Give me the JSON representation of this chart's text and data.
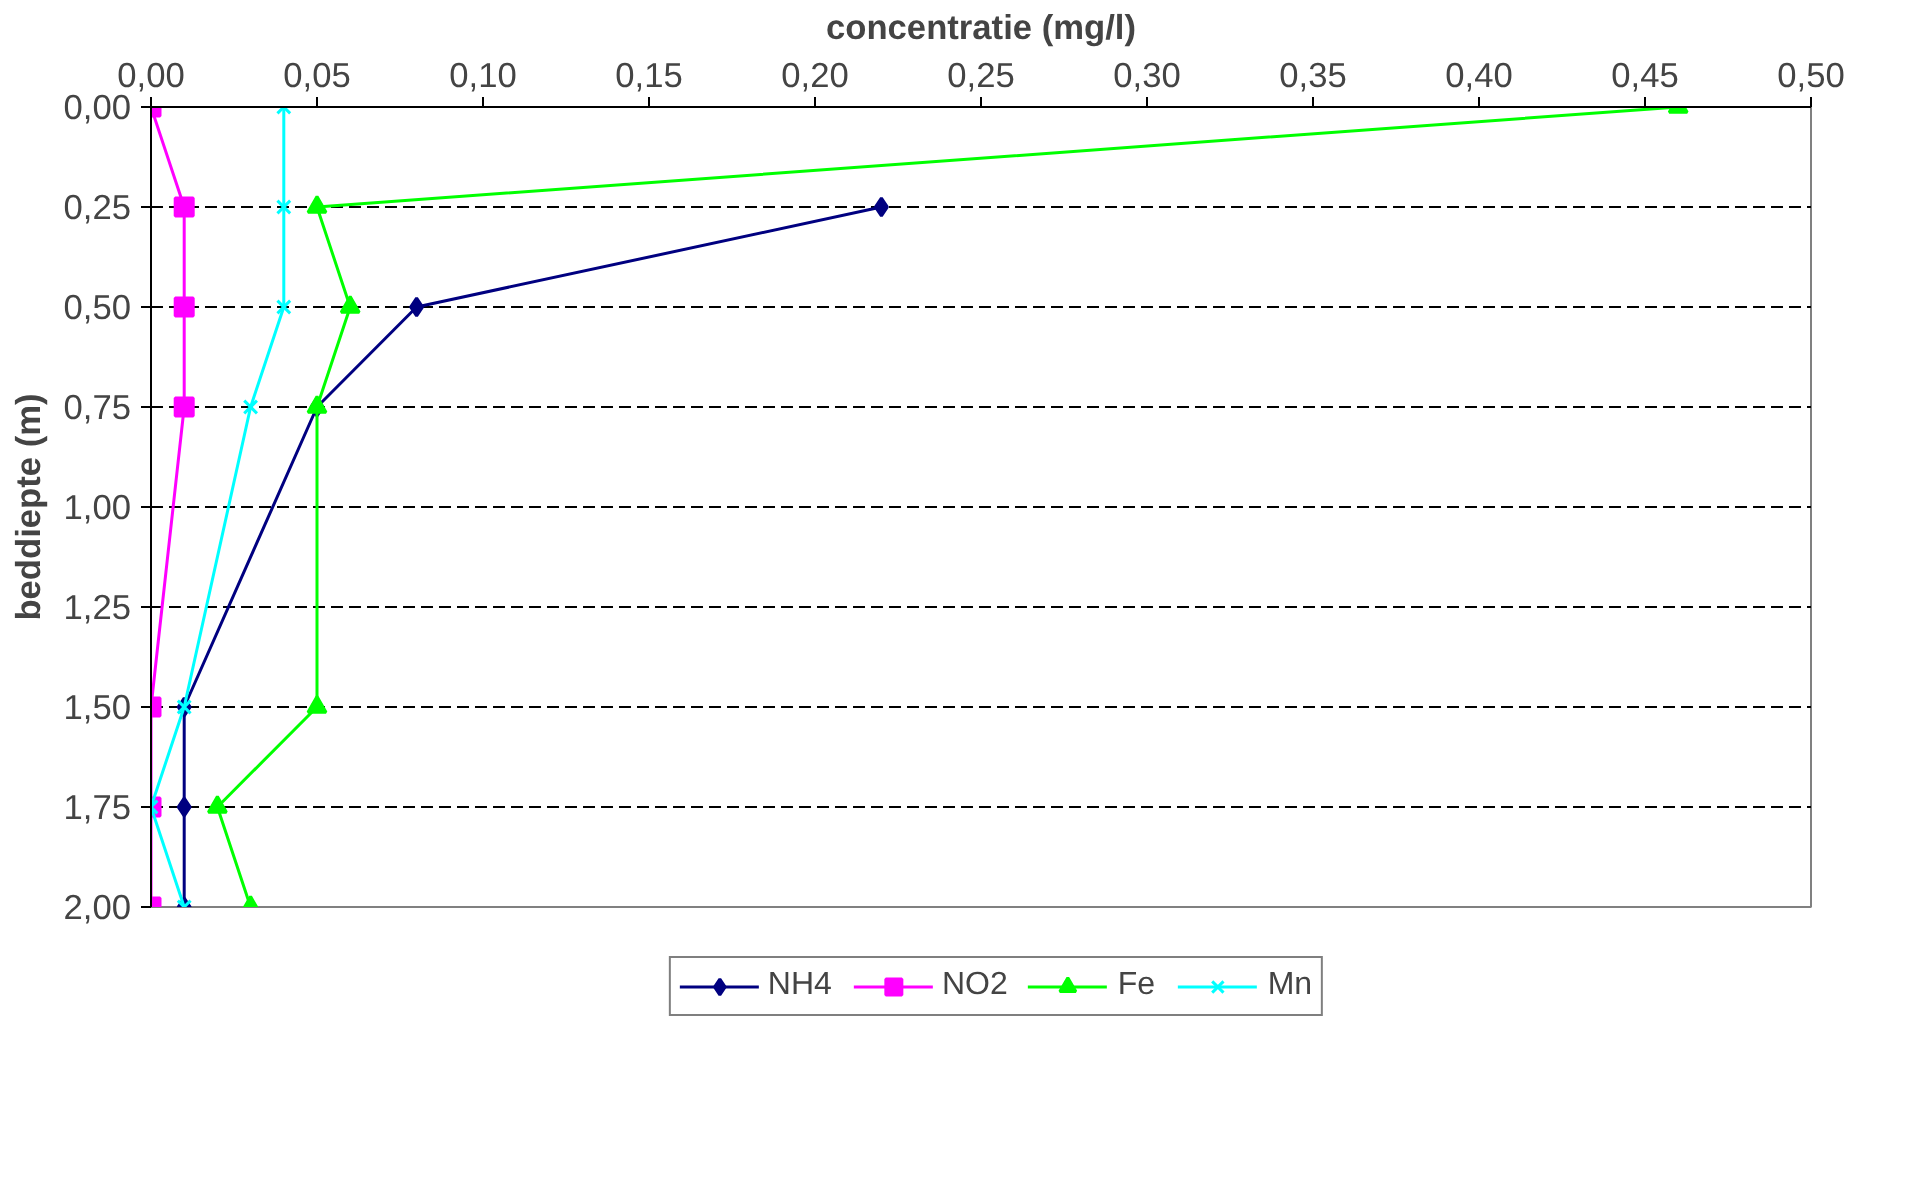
{
  "chart_data": {
    "type": "line",
    "xlabel": "concentratie (mg/l)",
    "ylabel": "beddiepte (m)",
    "xlim": [
      0,
      0.5
    ],
    "ylim": [
      2.0,
      0.0
    ],
    "xticks": [
      {
        "value": 0,
        "label": "0,00"
      },
      {
        "value": 0.05,
        "label": "0,05"
      },
      {
        "value": 0.1,
        "label": "0,10"
      },
      {
        "value": 0.15,
        "label": "0,15"
      },
      {
        "value": 0.2,
        "label": "0,20"
      },
      {
        "value": 0.25,
        "label": "0,25"
      },
      {
        "value": 0.3,
        "label": "0,30"
      },
      {
        "value": 0.35,
        "label": "0,35"
      },
      {
        "value": 0.4,
        "label": "0,40"
      },
      {
        "value": 0.45,
        "label": "0,45"
      },
      {
        "value": 0.5,
        "label": "0,50"
      }
    ],
    "yticks": [
      {
        "value": 0,
        "label": "0,00"
      },
      {
        "value": 0.25,
        "label": "0,25"
      },
      {
        "value": 0.5,
        "label": "0,50"
      },
      {
        "value": 0.75,
        "label": "0,75"
      },
      {
        "value": 1.0,
        "label": "1,00"
      },
      {
        "value": 1.25,
        "label": "1,25"
      },
      {
        "value": 1.5,
        "label": "1,50"
      },
      {
        "value": 1.75,
        "label": "1,75"
      },
      {
        "value": 2.0,
        "label": "2,00"
      }
    ],
    "grid": "y",
    "legend": "bottom",
    "line_style": "solid",
    "series": [
      {
        "name": "NH4",
        "color": "#000080",
        "marker": "diamond",
        "x": [
          0.22,
          0.08,
          0.05,
          0.01,
          0.01,
          0.01
        ],
        "values": [
          0.25,
          0.5,
          0.75,
          1.5,
          1.75,
          2.0
        ]
      },
      {
        "name": "NO2",
        "color": "#ff00ff",
        "marker": "square",
        "x": [
          0,
          0.01,
          0.01,
          0.01,
          0,
          0,
          0
        ],
        "values": [
          0,
          0.25,
          0.5,
          0.75,
          1.5,
          1.75,
          2.0
        ]
      },
      {
        "name": "Fe",
        "color": "#00ff00",
        "marker": "triangle",
        "x": [
          0.46,
          0.05,
          0.06,
          0.05,
          0.05,
          0.02,
          0.03
        ],
        "values": [
          0,
          0.25,
          0.5,
          0.75,
          1.5,
          1.75,
          2.0
        ]
      },
      {
        "name": "Mn",
        "color": "#00ffff",
        "marker": "cross",
        "x": [
          0.04,
          0.04,
          0.04,
          0.03,
          0.01,
          0,
          0.01
        ],
        "values": [
          0,
          0.25,
          0.5,
          0.75,
          1.5,
          1.75,
          2.0
        ]
      }
    ]
  }
}
